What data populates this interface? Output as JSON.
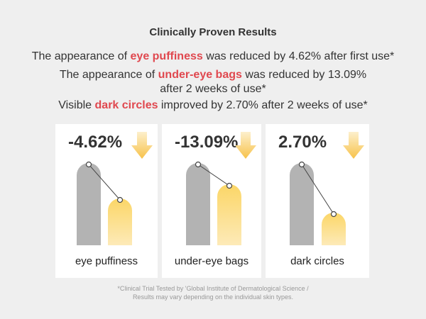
{
  "title": "Clinically Proven Results",
  "statements": [
    {
      "before": "The appearance of ",
      "highlight": "eye puffiness",
      "after": " was reduced by 4.62% after first use*"
    },
    {
      "before": "The appearance of ",
      "highlight": "under-eye bags",
      "after": " was reduced by 13.09%",
      "continuation": "after 2 weeks of use*"
    },
    {
      "before": "Visible ",
      "highlight": "dark circles",
      "after": " improved by 2.70% after 2 weeks of use*"
    }
  ],
  "panels": [
    {
      "value": "-4.62%",
      "label": "eye puffiness"
    },
    {
      "value": "-13.09%",
      "label": "under-eye bags"
    },
    {
      "value": "2.70%",
      "label": "dark circles"
    }
  ],
  "footnote": [
    "*Clinical Trial Tested by 'Global Institute of Dermatological Science /",
    "Results may vary depending on the individual skin types."
  ]
}
